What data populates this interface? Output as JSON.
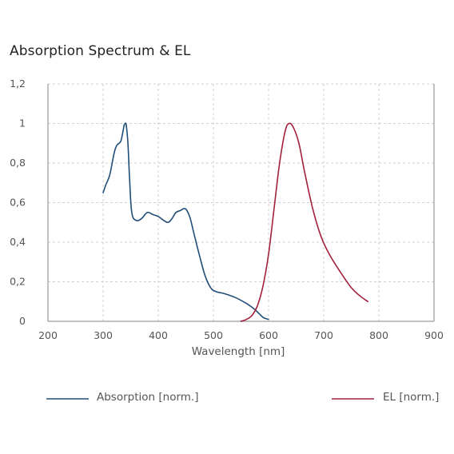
{
  "chart_data": {
    "type": "line",
    "title": "Absorption Spectrum & EL",
    "xlabel": "Wavelength [nm]",
    "ylabel": "",
    "xlim": [
      200,
      900
    ],
    "ylim": [
      0,
      1.2
    ],
    "x_ticks": [
      200,
      300,
      400,
      500,
      600,
      700,
      800,
      900
    ],
    "x_tick_labels": [
      "200",
      "300",
      "400",
      "500",
      "600",
      "700",
      "800",
      "900"
    ],
    "y_ticks": [
      0,
      0.2,
      0.4,
      0.6,
      0.8,
      1,
      1.2
    ],
    "y_tick_labels": [
      "0",
      "0,2",
      "0,4",
      "0,6",
      "0,8",
      "1",
      "1,2"
    ],
    "grid": true,
    "legend_position": "bottom",
    "series": [
      {
        "name": "Absorption [norm.]",
        "color": "#1f4e79",
        "x": [
          300,
          305,
          312,
          320,
          325,
          332,
          336,
          338,
          340,
          342,
          345,
          348,
          352,
          360,
          370,
          380,
          390,
          400,
          410,
          418,
          425,
          432,
          440,
          447,
          452,
          458,
          465,
          475,
          485,
          495,
          505,
          520,
          540,
          560,
          575,
          590,
          600
        ],
        "y": [
          0.65,
          0.69,
          0.74,
          0.85,
          0.89,
          0.91,
          0.96,
          0.99,
          1.0,
          0.99,
          0.9,
          0.72,
          0.55,
          0.51,
          0.52,
          0.55,
          0.54,
          0.53,
          0.51,
          0.5,
          0.52,
          0.55,
          0.56,
          0.57,
          0.56,
          0.52,
          0.44,
          0.33,
          0.23,
          0.17,
          0.15,
          0.14,
          0.12,
          0.09,
          0.06,
          0.02,
          0.01
        ]
      },
      {
        "name": "EL [norm.]",
        "color": "#a3213a",
        "x": [
          550,
          560,
          570,
          580,
          590,
          600,
          610,
          620,
          630,
          637,
          645,
          655,
          665,
          680,
          695,
          710,
          730,
          750,
          765,
          780
        ],
        "y": [
          0.0,
          0.01,
          0.03,
          0.08,
          0.18,
          0.34,
          0.57,
          0.8,
          0.96,
          1.0,
          0.98,
          0.9,
          0.76,
          0.57,
          0.43,
          0.34,
          0.25,
          0.17,
          0.13,
          0.1
        ]
      }
    ]
  }
}
